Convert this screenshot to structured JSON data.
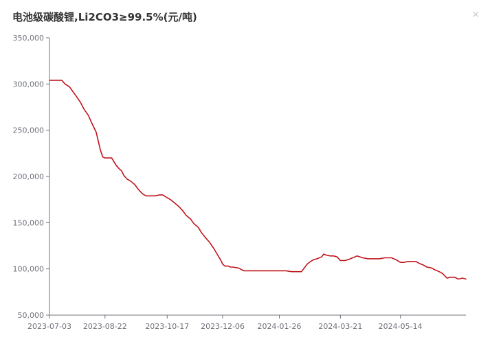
{
  "chart_data": {
    "type": "line",
    "title": "电池级碳酸锂,Li2CO3≥99.5%(元/吨)",
    "xlabel": "",
    "ylabel": "",
    "x_tick_labels": [
      "2023-07-03",
      "2023-08-22",
      "2023-10-17",
      "2023-12-06",
      "2024-01-26",
      "2024-03-21",
      "2024-05-14"
    ],
    "y_tick_labels": [
      "50,000",
      "100,000",
      "150,000",
      "200,000",
      "250,000",
      "300,000",
      "350,000"
    ],
    "y_ticks": [
      50000,
      100000,
      150000,
      200000,
      250000,
      300000,
      350000
    ],
    "ylim": [
      50000,
      350000
    ],
    "xlim": [
      "2023-07-03",
      "2024-07-12"
    ],
    "grid": false,
    "legend": "none",
    "line_color": "#c0141b",
    "series": [
      {
        "x": [
          "2023-07-03",
          "2023-07-10",
          "2023-07-14",
          "2023-07-17",
          "2023-07-21",
          "2023-07-24",
          "2023-07-27",
          "2023-07-31",
          "2023-08-03",
          "2023-08-07",
          "2023-08-10",
          "2023-08-14",
          "2023-08-16",
          "2023-08-18",
          "2023-08-20",
          "2023-08-22",
          "2023-08-25",
          "2023-08-28",
          "2023-09-01",
          "2023-09-04",
          "2023-09-06",
          "2023-09-08",
          "2023-09-11",
          "2023-09-14",
          "2023-09-18",
          "2023-09-21",
          "2023-09-25",
          "2023-09-28",
          "2023-10-02",
          "2023-10-06",
          "2023-10-10",
          "2023-10-13",
          "2023-10-17",
          "2023-10-20",
          "2023-10-23",
          "2023-10-27",
          "2023-10-31",
          "2023-11-03",
          "2023-11-07",
          "2023-11-10",
          "2023-11-14",
          "2023-11-17",
          "2023-11-21",
          "2023-11-24",
          "2023-11-28",
          "2023-12-01",
          "2023-12-04",
          "2023-12-06",
          "2023-12-08",
          "2023-12-11",
          "2023-12-13",
          "2023-12-15",
          "2023-12-20",
          "2023-12-25",
          "2023-12-29",
          "2024-01-02",
          "2024-01-05",
          "2024-01-10",
          "2024-01-15",
          "2024-01-20",
          "2024-01-26",
          "2024-02-01",
          "2024-02-06",
          "2024-02-15",
          "2024-02-20",
          "2024-02-23",
          "2024-02-26",
          "2024-02-29",
          "2024-03-04",
          "2024-03-06",
          "2024-03-08",
          "2024-03-12",
          "2024-03-15",
          "2024-03-18",
          "2024-03-21",
          "2024-03-25",
          "2024-03-28",
          "2024-04-01",
          "2024-04-05",
          "2024-04-10",
          "2024-04-15",
          "2024-04-20",
          "2024-04-25",
          "2024-04-30",
          "2024-05-06",
          "2024-05-10",
          "2024-05-14",
          "2024-05-17",
          "2024-05-21",
          "2024-05-24",
          "2024-05-28",
          "2024-05-31",
          "2024-06-04",
          "2024-06-07",
          "2024-06-11",
          "2024-06-14",
          "2024-06-18",
          "2024-06-21",
          "2024-06-25",
          "2024-06-28",
          "2024-07-02",
          "2024-07-05",
          "2024-07-09",
          "2024-07-12"
        ],
        "values": [
          304000,
          304000,
          304000,
          300000,
          297000,
          292000,
          287000,
          280000,
          273000,
          266000,
          258000,
          248000,
          238000,
          228000,
          221000,
          220000,
          220000,
          220000,
          212000,
          208000,
          206000,
          201000,
          197000,
          195000,
          191000,
          186000,
          181000,
          179000,
          179000,
          179000,
          180000,
          180000,
          177000,
          175000,
          172000,
          168000,
          163000,
          158000,
          154000,
          149000,
          145000,
          139000,
          133000,
          129000,
          122000,
          116000,
          110000,
          105000,
          103000,
          103000,
          102000,
          102000,
          101000,
          98000,
          98000,
          98000,
          98000,
          98000,
          98000,
          98000,
          98000,
          98000,
          97000,
          97000,
          105000,
          108000,
          110000,
          111000,
          113000,
          116000,
          115000,
          114000,
          114000,
          113000,
          109000,
          109000,
          110000,
          112000,
          114000,
          112000,
          111000,
          111000,
          111000,
          112000,
          112000,
          110000,
          107000,
          107000,
          108000,
          108000,
          108000,
          106000,
          104000,
          102000,
          101000,
          99000,
          97000,
          95000,
          90000,
          91000,
          91000,
          89000,
          90000,
          89000
        ]
      }
    ]
  }
}
